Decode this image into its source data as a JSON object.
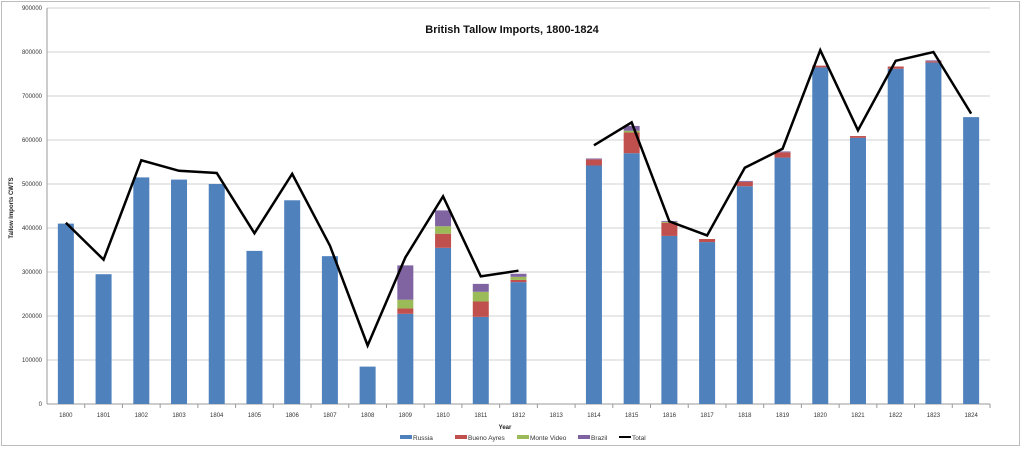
{
  "chart_data": {
    "type": "bar",
    "stacked": true,
    "title": "British Tallow Imports, 1800-1824",
    "xlabel": "Year",
    "ylabel": "Tallow Imports CWTS",
    "ylim": [
      0,
      900000
    ],
    "yticks": [
      0,
      100000,
      200000,
      300000,
      400000,
      500000,
      600000,
      700000,
      800000,
      900000
    ],
    "grid": true,
    "legend_position": "bottom",
    "categories": [
      "1800",
      "1801",
      "1802",
      "1803",
      "1804",
      "1805",
      "1806",
      "1807",
      "1808",
      "1809",
      "1810",
      "1811",
      "1812",
      "1813",
      "1814",
      "1815",
      "1816",
      "1817",
      "1818",
      "1819",
      "1820",
      "1821",
      "1822",
      "1823",
      "1824"
    ],
    "series": [
      {
        "name": "Russia",
        "type": "bar",
        "color": "#4f81bd",
        "values": [
          410000,
          295000,
          515000,
          510000,
          500000,
          348000,
          463000,
          336000,
          85000,
          205000,
          355000,
          198000,
          277000,
          null,
          542000,
          570000,
          382000,
          368000,
          495000,
          560000,
          765000,
          605000,
          762000,
          776000,
          652000
        ]
      },
      {
        "name": "Bueno Ayres",
        "type": "bar",
        "color": "#c0504d",
        "values": [
          0,
          0,
          0,
          0,
          0,
          0,
          0,
          0,
          0,
          12000,
          32000,
          35000,
          5000,
          null,
          14000,
          47000,
          30000,
          7000,
          10000,
          12000,
          4000,
          4000,
          5000,
          3000,
          0
        ]
      },
      {
        "name": "Monte Video",
        "type": "bar",
        "color": "#9bbb59",
        "values": [
          0,
          0,
          0,
          0,
          0,
          0,
          0,
          0,
          0,
          20000,
          17000,
          22000,
          7000,
          null,
          0,
          4000,
          2000,
          0,
          0,
          0,
          0,
          0,
          0,
          0,
          0
        ]
      },
      {
        "name": "Brazil",
        "type": "bar",
        "color": "#8064a2",
        "values": [
          0,
          0,
          0,
          0,
          0,
          0,
          0,
          0,
          0,
          78000,
          36000,
          18000,
          7000,
          null,
          2000,
          11000,
          2000,
          0,
          2000,
          2000,
          0,
          0,
          0,
          2000,
          0
        ]
      },
      {
        "name": "Total",
        "type": "line",
        "color": "#000000",
        "values": [
          412000,
          328000,
          554000,
          530000,
          525000,
          388000,
          523000,
          360000,
          133000,
          333000,
          472000,
          290000,
          303000,
          null,
          588000,
          640000,
          415000,
          383000,
          537000,
          580000,
          804000,
          622000,
          780000,
          800000,
          660000
        ]
      }
    ]
  }
}
